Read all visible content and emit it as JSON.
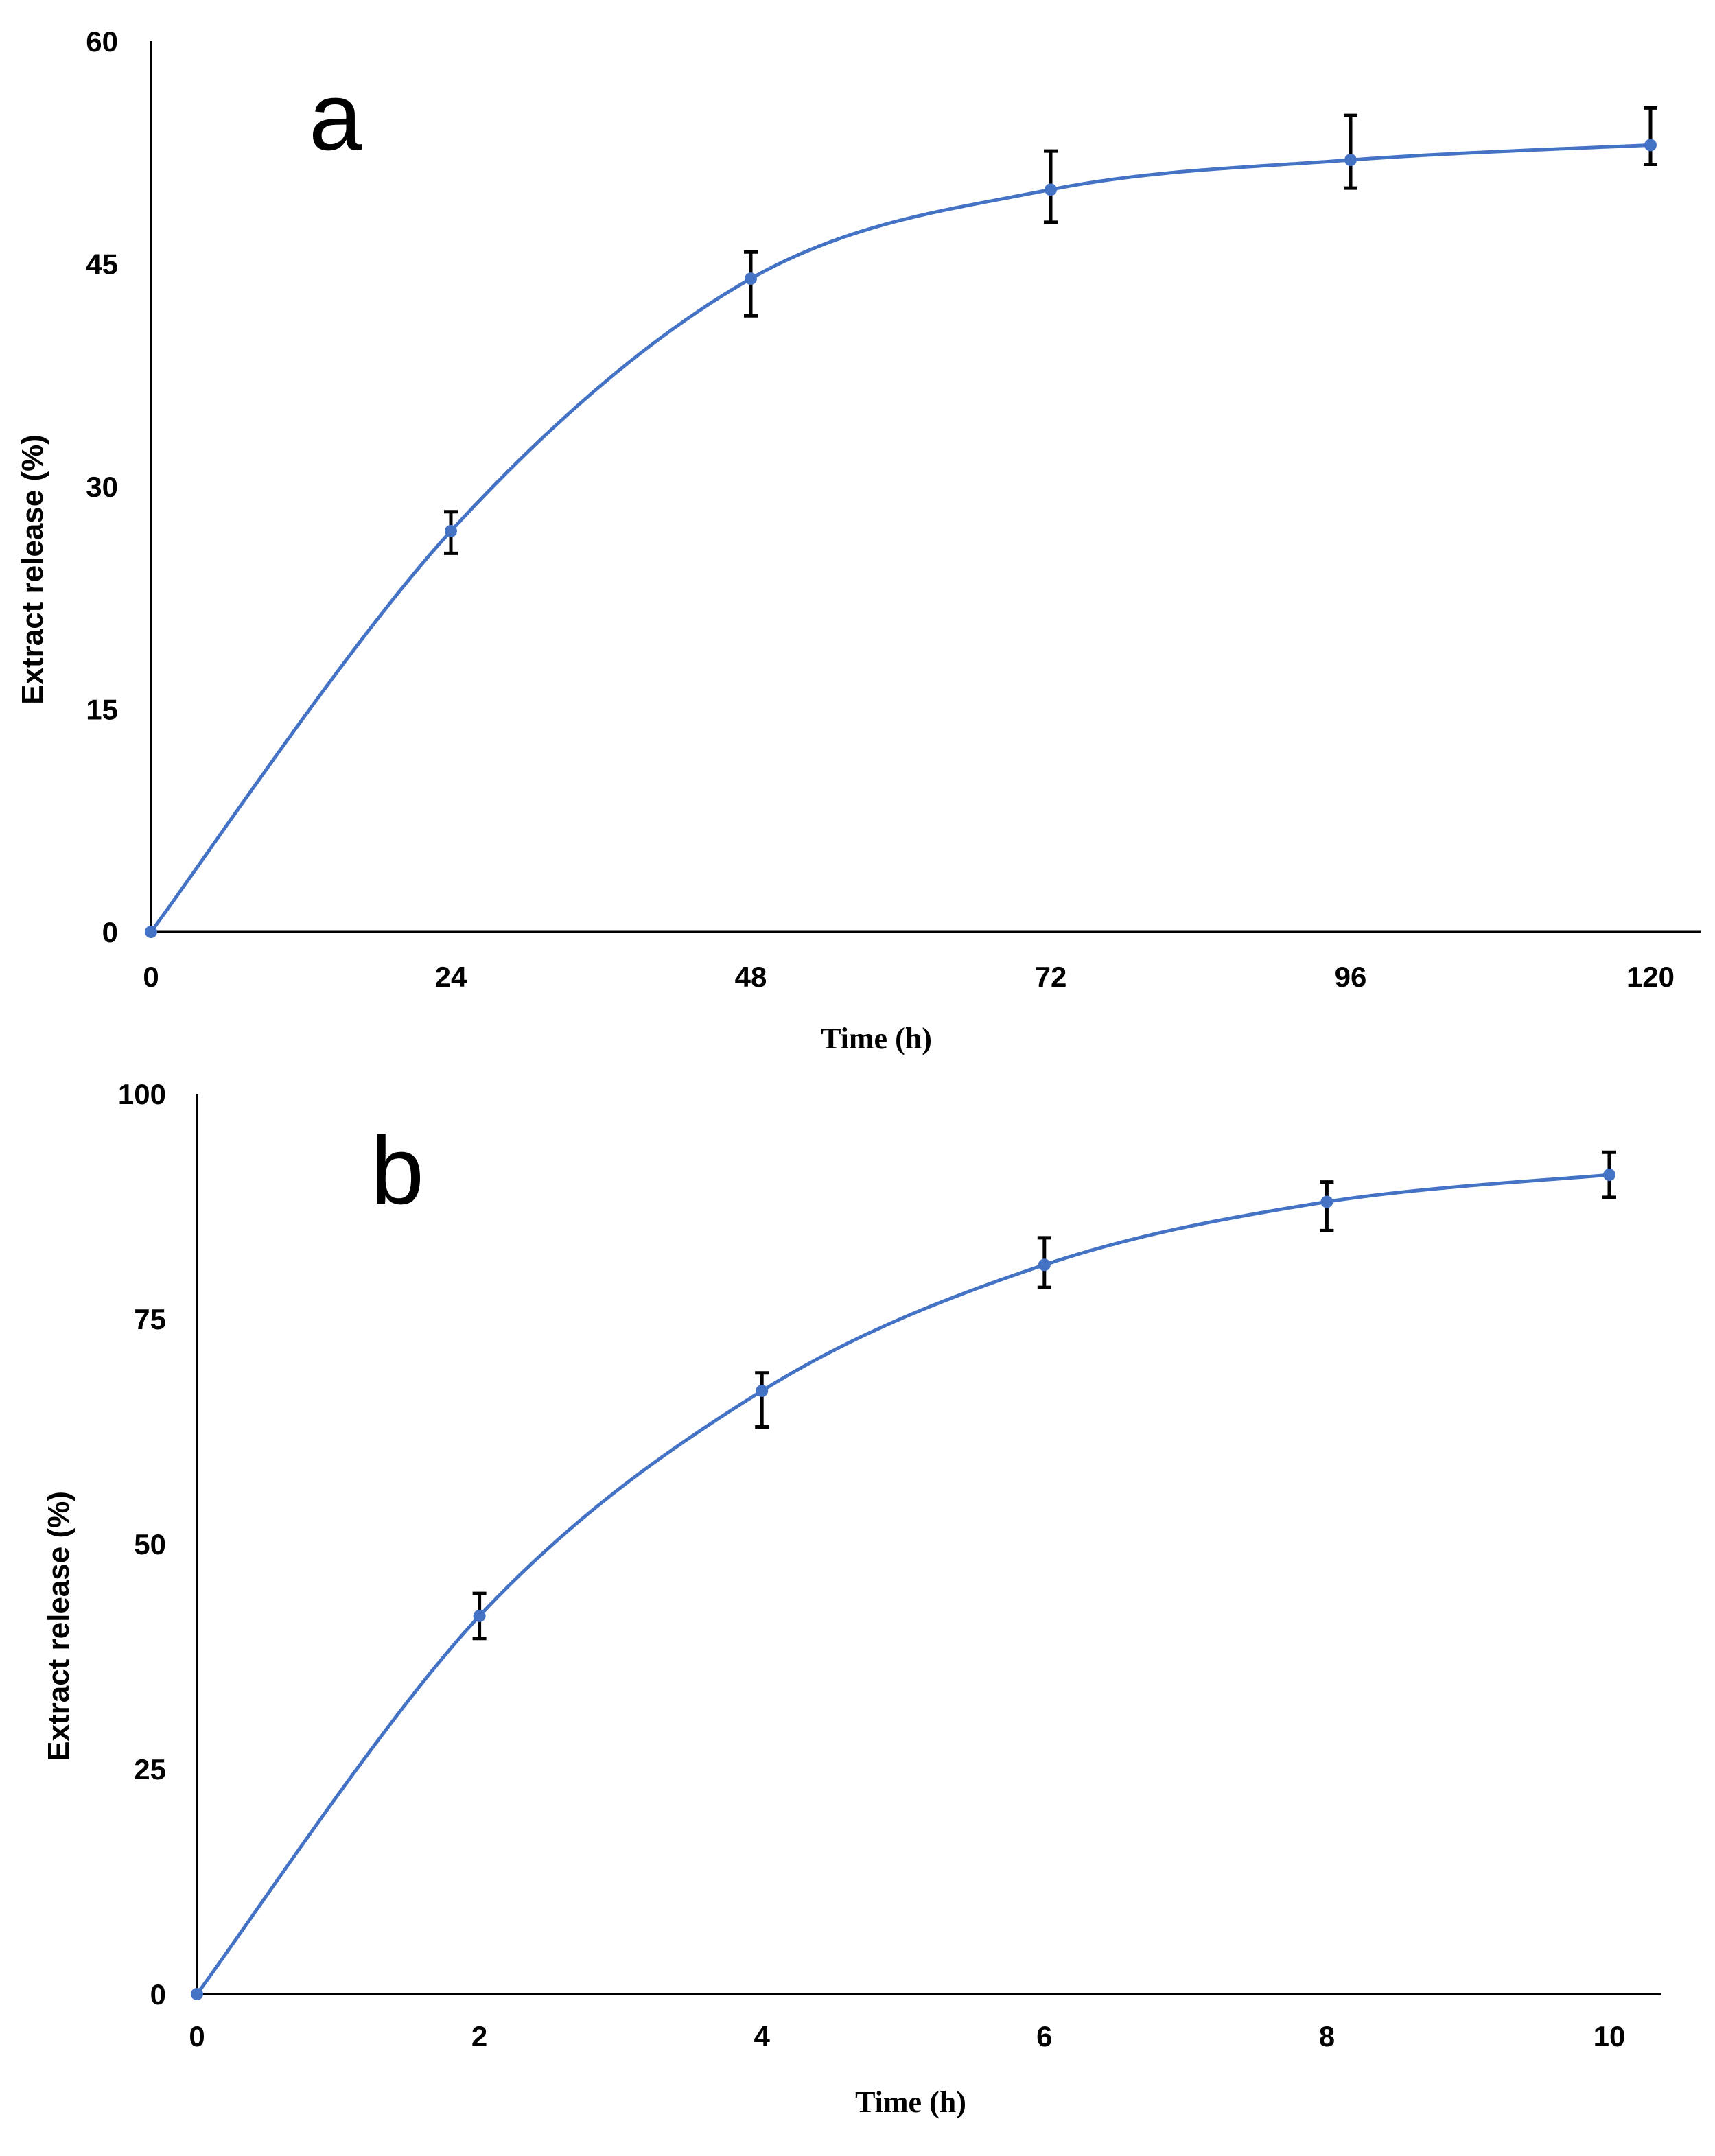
{
  "chart_data": [
    {
      "type": "line",
      "panel_label": "a",
      "title": "",
      "xlabel": "Time (h)",
      "ylabel": "Extract release (%)",
      "x": [
        0,
        24,
        48,
        72,
        96,
        120
      ],
      "x_ticks": [
        "0",
        "24",
        "48",
        "72",
        "96",
        "120"
      ],
      "xlim": [
        0,
        120
      ],
      "y_ticks": [
        "0",
        "15",
        "30",
        "45",
        "60"
      ],
      "ylim": [
        0,
        60
      ],
      "series": [
        {
          "name": "Extract release",
          "color": "#4472C4",
          "values": [
            0,
            27,
            44,
            50,
            52,
            53
          ],
          "error_low": [
            0,
            1.5,
            2.5,
            2.2,
            1.9,
            1.3
          ],
          "error_high": [
            0,
            1.3,
            1.8,
            2.6,
            3.0,
            2.5
          ]
        }
      ],
      "grid": false,
      "legend": "none"
    },
    {
      "type": "line",
      "panel_label": "b",
      "title": "",
      "xlabel": "Time (h)",
      "ylabel": "Extract release (%)",
      "x": [
        0,
        2,
        4,
        6,
        8,
        10
      ],
      "x_ticks": [
        "0",
        "2",
        "4",
        "6",
        "8",
        "10"
      ],
      "xlim": [
        0,
        10
      ],
      "y_ticks": [
        "0",
        "25",
        "50",
        "75",
        "100"
      ],
      "ylim": [
        0,
        100
      ],
      "series": [
        {
          "name": "Extract release",
          "color": "#4472C4",
          "values": [
            0,
            42,
            67,
            81,
            88,
            91
          ],
          "error_low": [
            0,
            2.5,
            4,
            2.5,
            3.2,
            2.5
          ],
          "error_high": [
            0,
            2.5,
            2,
            3,
            2.2,
            2.5
          ]
        }
      ],
      "grid": false,
      "legend": "none"
    }
  ]
}
